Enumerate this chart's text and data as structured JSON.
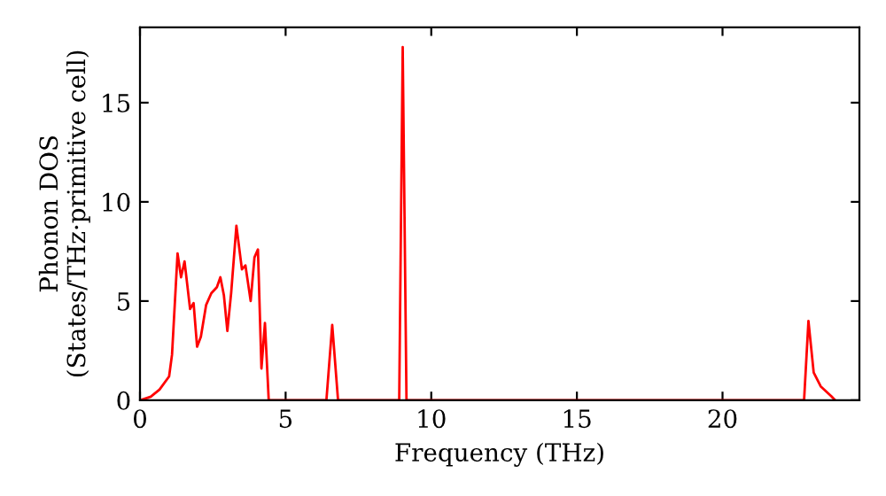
{
  "chart_data": {
    "type": "line",
    "xlabel": "Frequency (THz)",
    "ylabel": "Phonon DOS\n(States/THz·primitive cell)",
    "xlim": [
      0,
      24.7
    ],
    "ylim": [
      0,
      18.8
    ],
    "xticks": [
      0,
      5,
      10,
      15,
      20
    ],
    "yticks": [
      0,
      5,
      10,
      15
    ],
    "grid": false,
    "marker": "none",
    "line_style": "solid",
    "series": [
      {
        "color": "#ff0000",
        "x": [
          0,
          0.37,
          0.67,
          1.0,
          1.1,
          1.29,
          1.41,
          1.53,
          1.72,
          1.84,
          1.96,
          2.09,
          2.27,
          2.45,
          2.64,
          2.76,
          2.88,
          3.0,
          3.13,
          3.31,
          3.5,
          3.62,
          3.8,
          3.93,
          4.05,
          4.17,
          4.29,
          4.42,
          6.4,
          6.6,
          6.8,
          8.9,
          9.02,
          9.15,
          22.8,
          22.95,
          23.13,
          23.37,
          23.74,
          23.87
        ],
        "values": [
          0,
          0.18,
          0.54,
          1.2,
          2.3,
          7.4,
          6.2,
          7.0,
          4.6,
          4.9,
          2.7,
          3.2,
          4.8,
          5.4,
          5.7,
          6.2,
          5.3,
          3.5,
          5.4,
          8.8,
          6.6,
          6.8,
          5.0,
          7.2,
          7.6,
          1.6,
          3.9,
          0,
          0,
          3.8,
          0,
          0,
          17.8,
          0,
          0,
          4.0,
          1.4,
          0.7,
          0.2,
          0
        ]
      }
    ]
  }
}
